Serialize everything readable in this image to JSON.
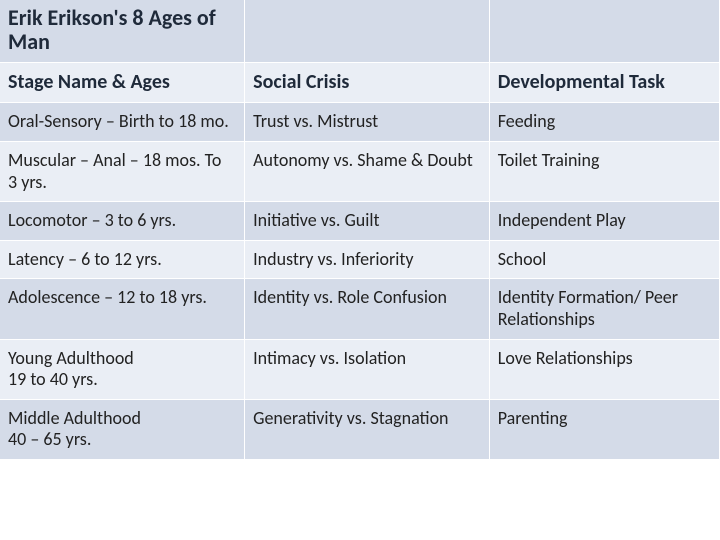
{
  "title": "Erik Erikson's 8 Ages of Man",
  "columns": [
    "Stage Name & Ages",
    "Social Crisis",
    "Developmental Task"
  ],
  "rows": [
    {
      "stage": "Oral-Sensory – Birth to 18 mo.",
      "crisis": "Trust vs. Mistrust",
      "task": "Feeding"
    },
    {
      "stage": "Muscular – Anal – 18 mos. To\n3 yrs.",
      "crisis": "Autonomy vs. Shame & Doubt",
      "task": "Toilet Training"
    },
    {
      "stage": "Locomotor – 3 to 6 yrs.",
      "crisis": "Initiative vs. Guilt",
      "task": "Independent Play"
    },
    {
      "stage": "Latency – 6 to 12 yrs.",
      "crisis": "Industry vs. Inferiority",
      "task": "School"
    },
    {
      "stage": "Adolescence – 12 to 18 yrs.",
      "crisis": "Identity vs. Role Confusion",
      "task": "Identity Formation/ Peer Relationships"
    },
    {
      "stage": "Young Adulthood\n19 to 40 yrs.",
      "crisis": "Intimacy vs. Isolation",
      "task": "Love Relationships"
    },
    {
      "stage": "Middle Adulthood\n40 – 65 yrs.",
      "crisis": "Generativity vs. Stagnation",
      "task": "Parenting"
    }
  ],
  "colors": {
    "band_a": "#d4dbe8",
    "band_b": "#eaeef5",
    "header_text": "#1f2a3a",
    "cell_text": "#222222",
    "row_border": "#ffffff"
  },
  "typography": {
    "title_fontsize_pt": 22,
    "header_fontsize_pt": 20,
    "cell_fontsize_pt": 18,
    "font_family": "Calibri"
  },
  "column_widths_pct": [
    34,
    34,
    32
  ],
  "structure_type": "table"
}
